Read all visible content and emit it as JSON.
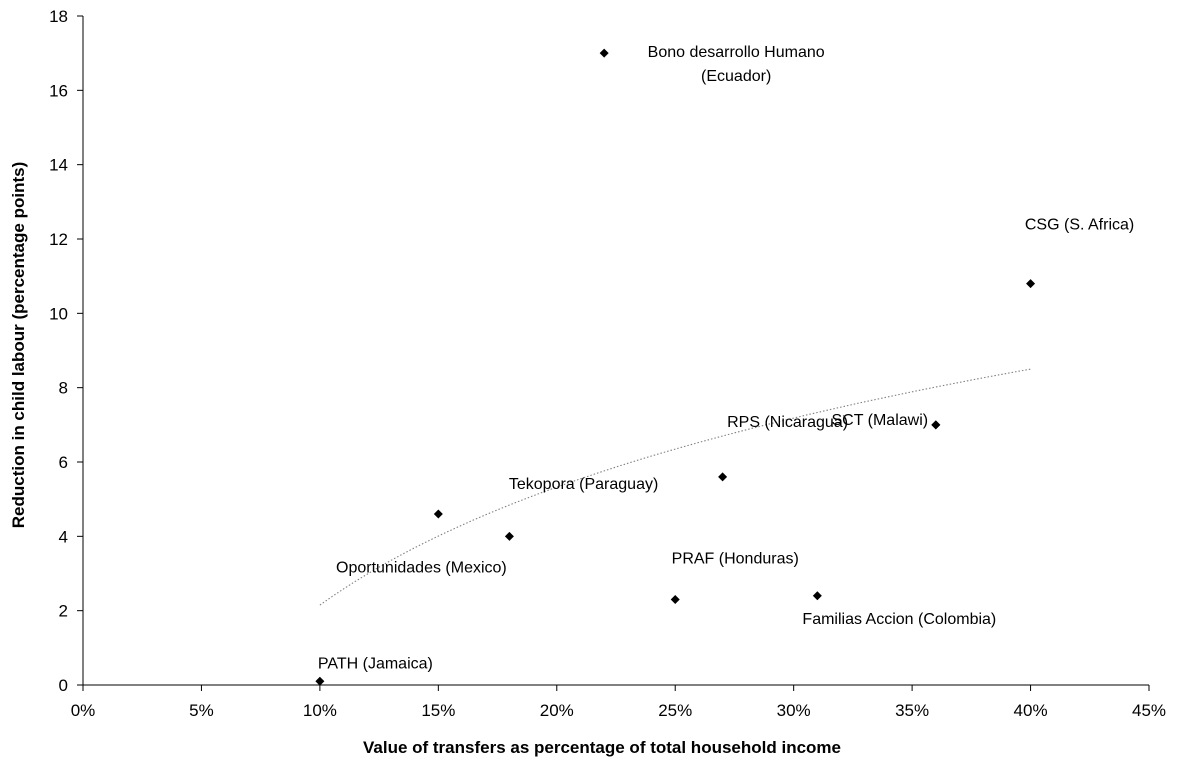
{
  "chart_data": {
    "type": "scatter",
    "title": "",
    "xlabel": "Value of transfers as percentage of total household income",
    "ylabel": "Reduction in child labour (percentage points)",
    "xlim": [
      0,
      0.45
    ],
    "ylim": [
      0,
      18
    ],
    "x_ticks": [
      {
        "value": 0,
        "label": "0%"
      },
      {
        "value": 0.05,
        "label": "5%"
      },
      {
        "value": 0.1,
        "label": "10%"
      },
      {
        "value": 0.15,
        "label": "15%"
      },
      {
        "value": 0.2,
        "label": "20%"
      },
      {
        "value": 0.25,
        "label": "25%"
      },
      {
        "value": 0.3,
        "label": "30%"
      },
      {
        "value": 0.35,
        "label": "35%"
      },
      {
        "value": 0.4,
        "label": "40%"
      },
      {
        "value": 0.45,
        "label": "45%"
      }
    ],
    "y_ticks": [
      {
        "value": 0,
        "label": "0"
      },
      {
        "value": 2,
        "label": "2"
      },
      {
        "value": 4,
        "label": "4"
      },
      {
        "value": 6,
        "label": "6"
      },
      {
        "value": 8,
        "label": "8"
      },
      {
        "value": 10,
        "label": "10"
      },
      {
        "value": 12,
        "label": "12"
      },
      {
        "value": 14,
        "label": "14"
      },
      {
        "value": 16,
        "label": "16"
      },
      {
        "value": 18,
        "label": "18"
      }
    ],
    "grid": false,
    "legend": "none",
    "marker": "diamond",
    "marker_color": "#000000",
    "points": [
      {
        "x": 0.1,
        "y": 0.1,
        "labels": [
          "PATH (Jamaica)"
        ],
        "label_anchor": "start",
        "label_dx": -2,
        "label_dy": -13
      },
      {
        "x": 0.15,
        "y": 4.6,
        "labels": [],
        "label_anchor": "middle",
        "label_dx": 0,
        "label_dy": 0
      },
      {
        "x": 0.18,
        "y": 4.0,
        "labels": [
          "Oportunidades (Mexico)"
        ],
        "label_anchor": "middle",
        "label_dx": -88,
        "label_dy": 36
      },
      {
        "x": 0.22,
        "y": 17.0,
        "labels": [
          "Bono desarrollo Humano",
          "(Ecuador)"
        ],
        "label_anchor": "middle",
        "label_dx": 132,
        "label_dy": 4
      },
      {
        "x": 0.25,
        "y": 2.3,
        "labels": [
          "PRAF (Honduras)"
        ],
        "label_anchor": "middle",
        "label_dx": 60,
        "label_dy": -36
      },
      {
        "x": 0.27,
        "y": 5.6,
        "labels": [
          "Tekopora (Paraguay)"
        ],
        "label_anchor": "middle",
        "label_dx": -139,
        "label_dy": 12
      },
      {
        "x": 0.31,
        "y": 2.4,
        "labels": [
          "Familias Accion (Colombia)"
        ],
        "label_anchor": "middle",
        "label_dx": 82,
        "label_dy": 28
      },
      {
        "x": 0.36,
        "y": 7.0,
        "labels": [
          "SCT (Malawi)"
        ],
        "label_anchor": "middle",
        "label_dx": -56,
        "label_dy": 0
      },
      {
        "x": 0.36,
        "y": 7.0,
        "labels": [],
        "label_anchor": "middle",
        "label_dx": 0,
        "label_dy": 0
      },
      {
        "x": 0.4,
        "y": 10.8,
        "labels": [
          "CSG (S. Africa)"
        ],
        "label_anchor": "middle",
        "label_dx": 49,
        "label_dy": -54
      }
    ],
    "extra_labels": [
      {
        "text": "RPS (Nicaragua)",
        "x": 0.27,
        "y": 5.6,
        "anchor": "middle",
        "dx": 65,
        "dy": -50
      }
    ],
    "trendline": {
      "type": "logarithmic",
      "x_range": [
        0.1,
        0.4
      ],
      "y_start": 2.15,
      "y_end": 8.5,
      "style": "dotted",
      "color": "#808080"
    }
  }
}
